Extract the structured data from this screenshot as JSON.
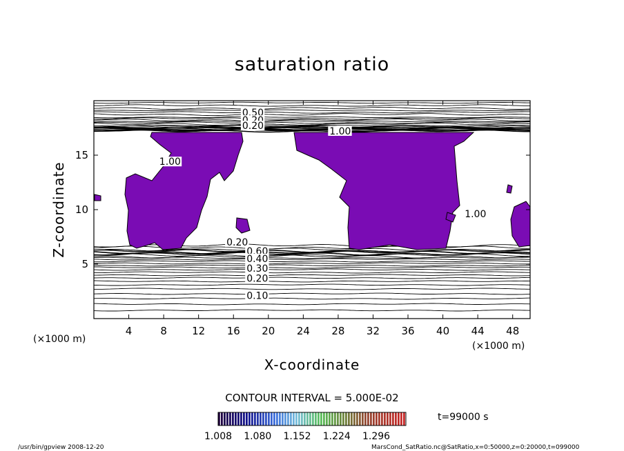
{
  "chart_data": {
    "type": "contour",
    "title": "saturation ratio",
    "xlabel": "X-coordinate",
    "ylabel": "Z-coordinate",
    "x_unit": "(×1000 m)",
    "y_unit": "(×1000 m)",
    "xlim": [
      0,
      50
    ],
    "ylim": [
      0,
      20
    ],
    "x_ticks": [
      4,
      8,
      12,
      16,
      20,
      24,
      28,
      32,
      36,
      40,
      44,
      48
    ],
    "y_ticks": [
      5,
      10,
      15
    ],
    "contour_labels": [
      {
        "text": "0.50",
        "x": 17.0,
        "z": 18.6
      },
      {
        "text": "0.20",
        "x": 17.0,
        "z": 17.9
      },
      {
        "text": "0.20",
        "x": 17.0,
        "z": 17.4
      },
      {
        "text": "1.00",
        "x": 27.0,
        "z": 16.9
      },
      {
        "text": "1.00",
        "x": 7.5,
        "z": 14.1
      },
      {
        "text": "1.00",
        "x": 42.5,
        "z": 9.3
      },
      {
        "text": "0.20",
        "x": 15.2,
        "z": 6.7
      },
      {
        "text": "0.60",
        "x": 17.5,
        "z": 5.9
      },
      {
        "text": "0.40",
        "x": 17.5,
        "z": 5.2
      },
      {
        "text": "0.30",
        "x": 17.5,
        "z": 4.3
      },
      {
        "text": "0.20",
        "x": 17.5,
        "z": 3.4
      },
      {
        "text": "0.10",
        "x": 17.5,
        "z": 1.8
      }
    ],
    "supersaturated_fill_color": "#7a0cb4",
    "contour_interval_text": "CONTOUR INTERVAL = 5.000E-02",
    "colorbar": {
      "tick_labels": [
        "1.008",
        "1.080",
        "1.152",
        "1.224",
        "1.296"
      ],
      "tick_values": [
        1.008,
        1.08,
        1.152,
        1.224,
        1.296
      ],
      "min": 1.008,
      "max": 1.35
    },
    "time_label": "t=99000 s"
  },
  "footer": {
    "left": "/usr/bin/gpview   2008-12-20",
    "right": "MarsCond_SatRatio.nc@SatRatio,x=0:50000,z=0:20000,t=099000"
  }
}
